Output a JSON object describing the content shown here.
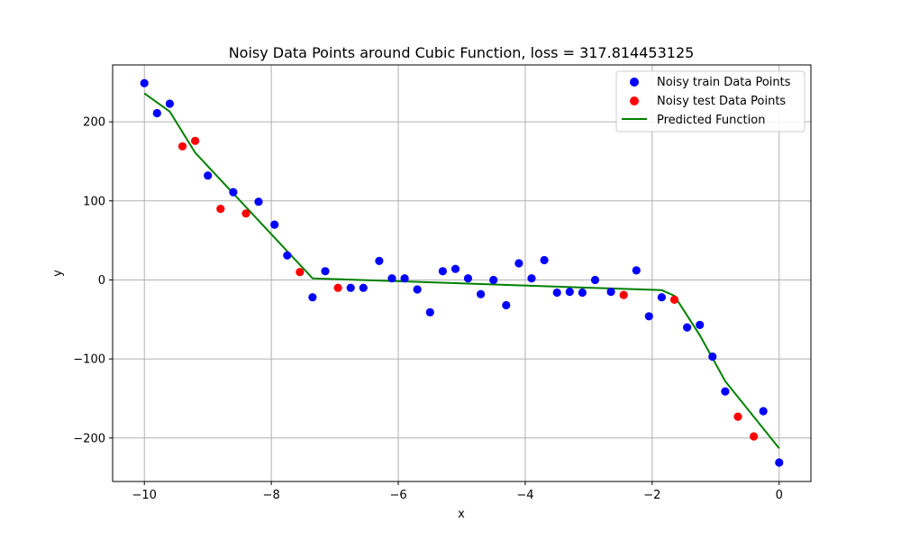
{
  "chart_data": {
    "type": "scatter",
    "title": "Noisy Data Points around Cubic Function, loss = 317.814453125",
    "xlabel": "x",
    "ylabel": "y",
    "xlim": [
      -10.5,
      0.5
    ],
    "ylim": [
      -255,
      272
    ],
    "x_ticks": [
      -10,
      -8,
      -6,
      -4,
      -2,
      0
    ],
    "x_tick_labels": [
      "−10",
      "−8",
      "−6",
      "−4",
      "−2",
      "0"
    ],
    "y_ticks": [
      -200,
      -100,
      0,
      100,
      200
    ],
    "y_tick_labels": [
      "−200",
      "−100",
      "0",
      "100",
      "200"
    ],
    "grid": true,
    "legend_position": "top-right",
    "series": [
      {
        "name": "Noisy train Data Points",
        "kind": "scatter",
        "color": "#0000ff",
        "points": [
          [
            -10.0,
            249
          ],
          [
            -9.8,
            211
          ],
          [
            -9.6,
            223
          ],
          [
            -9.0,
            132
          ],
          [
            -8.6,
            111
          ],
          [
            -8.2,
            99
          ],
          [
            -7.95,
            70
          ],
          [
            -7.75,
            31
          ],
          [
            -7.35,
            -22
          ],
          [
            -7.15,
            11
          ],
          [
            -6.75,
            -10
          ],
          [
            -6.55,
            -10
          ],
          [
            -6.3,
            24
          ],
          [
            -6.1,
            2
          ],
          [
            -5.9,
            2
          ],
          [
            -5.7,
            -12
          ],
          [
            -5.5,
            -41
          ],
          [
            -5.3,
            11
          ],
          [
            -5.1,
            14
          ],
          [
            -4.9,
            2
          ],
          [
            -4.7,
            -18
          ],
          [
            -4.5,
            0
          ],
          [
            -4.3,
            -32
          ],
          [
            -4.1,
            21
          ],
          [
            -3.9,
            2
          ],
          [
            -3.7,
            25
          ],
          [
            -3.5,
            -16
          ],
          [
            -3.3,
            -15
          ],
          [
            -3.1,
            -16
          ],
          [
            -2.9,
            0
          ],
          [
            -2.65,
            -15
          ],
          [
            -2.25,
            12
          ],
          [
            -2.05,
            -46
          ],
          [
            -1.85,
            -22
          ],
          [
            -1.45,
            -60
          ],
          [
            -1.25,
            -57
          ],
          [
            -1.05,
            -97
          ],
          [
            -0.85,
            -141
          ],
          [
            -0.25,
            -166
          ],
          [
            0.0,
            -231
          ]
        ]
      },
      {
        "name": "Noisy test Data Points",
        "kind": "scatter",
        "color": "#ff0000",
        "points": [
          [
            -9.4,
            169
          ],
          [
            -9.2,
            176
          ],
          [
            -8.8,
            90
          ],
          [
            -8.4,
            84
          ],
          [
            -7.55,
            10
          ],
          [
            -6.95,
            -10
          ],
          [
            -2.45,
            -19
          ],
          [
            -1.65,
            -25
          ],
          [
            -0.65,
            -173
          ],
          [
            -0.4,
            -198
          ]
        ]
      },
      {
        "name": "Predicted Function",
        "kind": "line",
        "color": "#008000",
        "points": [
          [
            -10.0,
            236
          ],
          [
            -9.6,
            213
          ],
          [
            -9.4,
            187
          ],
          [
            -9.2,
            161
          ],
          [
            -7.35,
            2
          ],
          [
            -1.85,
            -13
          ],
          [
            -1.65,
            -20
          ],
          [
            -1.25,
            -70
          ],
          [
            -0.85,
            -128
          ],
          [
            0.0,
            -213
          ]
        ]
      }
    ]
  }
}
